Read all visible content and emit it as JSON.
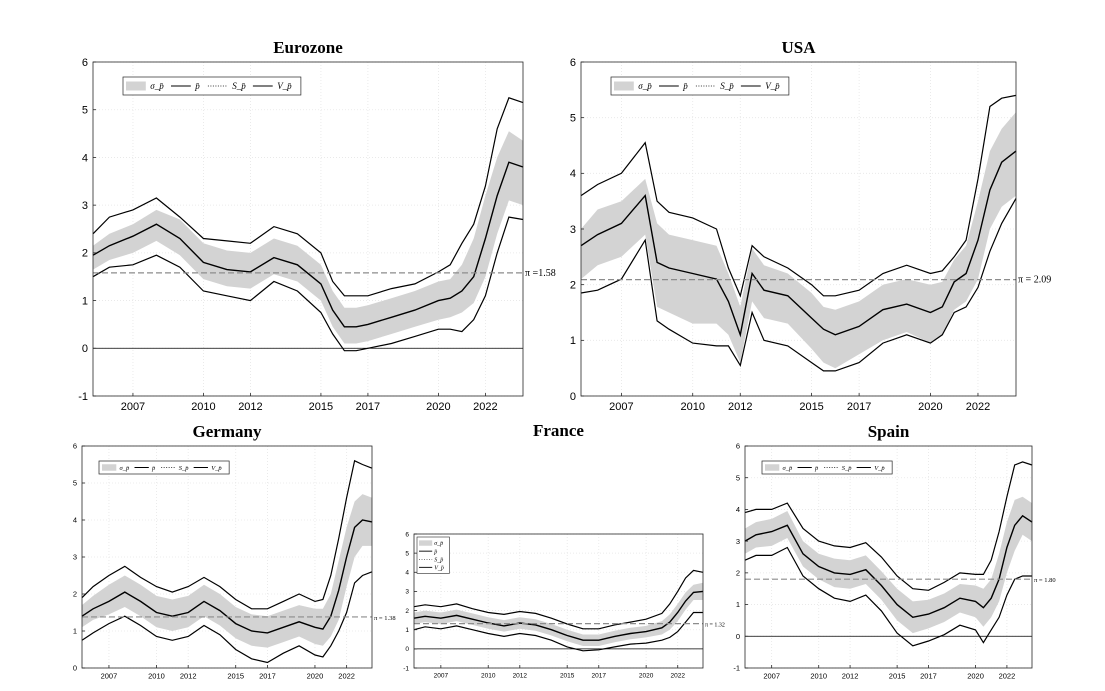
{
  "colors": {
    "band": "#d3d3d3",
    "line": "#000000",
    "target": "#8c8c8c",
    "grid": "#e6e6e6"
  },
  "legend": [
    "σ_p̄",
    "p̄",
    "S_p̄",
    "V_p̄"
  ],
  "chart_data": [
    {
      "type": "area",
      "title": "Eurozone",
      "xlim": [
        2005.3,
        2023.6
      ],
      "ylim": [
        -1,
        6
      ],
      "xticks": [
        "2007",
        "2010",
        "2012",
        "2015",
        "2017",
        "2020",
        "2022"
      ],
      "xtick_values": [
        2007,
        2010,
        2012,
        2015,
        2017,
        2020,
        2022
      ],
      "yticks": [
        "-1",
        "0",
        "1",
        "2",
        "3",
        "4",
        "5",
        "6"
      ],
      "target": 1.58,
      "target_label": "π =1.58",
      "legend_position": "top-left",
      "x": [
        2005.3,
        2006.0,
        2007.0,
        2008.0,
        2009.0,
        2010.0,
        2011.0,
        2012.0,
        2013.0,
        2014.0,
        2015.0,
        2015.5,
        2016.0,
        2016.5,
        2017.0,
        2018.0,
        2019.0,
        2020.0,
        2020.5,
        2021.0,
        2021.5,
        2022.0,
        2022.5,
        2023.0,
        2023.6
      ],
      "mean": [
        1.95,
        2.15,
        2.35,
        2.6,
        2.3,
        1.8,
        1.65,
        1.6,
        1.9,
        1.75,
        1.35,
        0.8,
        0.45,
        0.45,
        0.5,
        0.65,
        0.8,
        1.0,
        1.05,
        1.2,
        1.5,
        2.3,
        3.2,
        3.9,
        3.8
      ],
      "band_upper": [
        2.15,
        2.4,
        2.6,
        2.9,
        2.7,
        2.2,
        2.05,
        2.0,
        2.3,
        2.15,
        1.75,
        1.2,
        0.85,
        0.85,
        0.9,
        1.05,
        1.2,
        1.4,
        1.45,
        1.75,
        2.3,
        3.2,
        4.0,
        4.55,
        4.35
      ],
      "band_lower": [
        1.65,
        1.85,
        2.0,
        2.25,
        1.95,
        1.45,
        1.3,
        1.25,
        1.55,
        1.4,
        1.0,
        0.45,
        0.1,
        0.1,
        0.15,
        0.3,
        0.45,
        0.6,
        0.65,
        0.75,
        0.95,
        1.5,
        2.4,
        3.1,
        3.0
      ],
      "upper_line": [
        2.4,
        2.75,
        2.9,
        3.15,
        2.75,
        2.3,
        2.25,
        2.2,
        2.55,
        2.4,
        2.0,
        1.4,
        1.1,
        1.1,
        1.1,
        1.25,
        1.35,
        1.6,
        1.75,
        2.2,
        2.6,
        3.4,
        4.6,
        5.25,
        5.15
      ],
      "lower_line": [
        1.5,
        1.7,
        1.75,
        1.95,
        1.7,
        1.2,
        1.1,
        1.0,
        1.4,
        1.2,
        0.75,
        0.3,
        -0.05,
        -0.05,
        0.0,
        0.1,
        0.25,
        0.4,
        0.4,
        0.35,
        0.6,
        1.1,
        2.0,
        2.75,
        2.7
      ]
    },
    {
      "type": "area",
      "title": "USA",
      "xlim": [
        2005.3,
        2023.6
      ],
      "ylim": [
        0,
        6
      ],
      "xticks": [
        "2007",
        "2010",
        "2012",
        "2015",
        "2017",
        "2020",
        "2022"
      ],
      "xtick_values": [
        2007,
        2010,
        2012,
        2015,
        2017,
        2020,
        2022
      ],
      "yticks": [
        "0",
        "1",
        "2",
        "3",
        "4",
        "5",
        "6"
      ],
      "target": 2.09,
      "target_label": "π = 2.09",
      "legend_position": "top-left",
      "x": [
        2005.3,
        2006.0,
        2007.0,
        2008.0,
        2008.5,
        2009.0,
        2010.0,
        2011.0,
        2011.5,
        2012.0,
        2012.5,
        2013.0,
        2014.0,
        2015.0,
        2015.5,
        2016.0,
        2017.0,
        2018.0,
        2019.0,
        2020.0,
        2020.5,
        2021.0,
        2021.5,
        2022.0,
        2022.5,
        2023.0,
        2023.6
      ],
      "mean": [
        2.7,
        2.9,
        3.1,
        3.6,
        2.4,
        2.3,
        2.2,
        2.1,
        1.7,
        1.1,
        2.2,
        1.9,
        1.8,
        1.4,
        1.2,
        1.1,
        1.25,
        1.55,
        1.65,
        1.5,
        1.6,
        2.05,
        2.2,
        2.8,
        3.7,
        4.2,
        4.4
      ],
      "band_upper": [
        3.0,
        3.35,
        3.5,
        3.9,
        3.1,
        2.9,
        2.8,
        2.7,
        2.2,
        1.6,
        2.65,
        2.35,
        2.2,
        1.85,
        1.6,
        1.55,
        1.7,
        2.0,
        2.1,
        2.0,
        2.05,
        2.45,
        2.7,
        3.5,
        4.4,
        4.8,
        5.1
      ],
      "band_lower": [
        2.1,
        2.35,
        2.5,
        2.9,
        1.6,
        1.5,
        1.3,
        1.3,
        1.1,
        0.6,
        1.7,
        1.4,
        1.3,
        0.85,
        0.6,
        0.5,
        0.75,
        1.0,
        1.15,
        0.95,
        1.1,
        1.55,
        1.7,
        2.1,
        3.0,
        3.4,
        3.6
      ],
      "upper_line": [
        3.6,
        3.8,
        4.0,
        4.55,
        3.5,
        3.3,
        3.2,
        3.0,
        2.3,
        1.8,
        2.7,
        2.5,
        2.3,
        2.0,
        1.8,
        1.8,
        1.9,
        2.2,
        2.35,
        2.2,
        2.25,
        2.5,
        2.8,
        3.9,
        5.2,
        5.35,
        5.4
      ],
      "lower_line": [
        1.85,
        1.9,
        2.1,
        2.8,
        1.35,
        1.2,
        0.95,
        0.9,
        0.9,
        0.55,
        1.5,
        1.0,
        0.9,
        0.6,
        0.45,
        0.45,
        0.6,
        0.95,
        1.1,
        0.95,
        1.1,
        1.5,
        1.6,
        1.95,
        2.6,
        3.1,
        3.55
      ]
    },
    {
      "type": "area",
      "title": "Germany",
      "xlim": [
        2005.3,
        2023.6
      ],
      "ylim": [
        0,
        6
      ],
      "xticks": [
        "2007",
        "2010",
        "2012",
        "2015",
        "2017",
        "2020",
        "2022"
      ],
      "xtick_values": [
        2007,
        2010,
        2012,
        2015,
        2017,
        2020,
        2022
      ],
      "yticks": [
        "0",
        "1",
        "2",
        "3",
        "4",
        "5",
        "6"
      ],
      "target": 1.38,
      "target_label": "π = 1.38",
      "legend_position": "top-left",
      "x": [
        2005.3,
        2006.0,
        2007.0,
        2008.0,
        2009.0,
        2010.0,
        2011.0,
        2012.0,
        2013.0,
        2014.0,
        2015.0,
        2016.0,
        2017.0,
        2018.0,
        2019.0,
        2020.0,
        2020.5,
        2021.0,
        2021.5,
        2022.0,
        2022.5,
        2023.0,
        2023.6
      ],
      "mean": [
        1.4,
        1.6,
        1.8,
        2.05,
        1.8,
        1.5,
        1.4,
        1.5,
        1.8,
        1.55,
        1.2,
        1.0,
        0.95,
        1.1,
        1.25,
        1.1,
        1.05,
        1.4,
        2.1,
        3.0,
        3.8,
        4.0,
        3.95
      ],
      "band_upper": [
        1.7,
        1.95,
        2.25,
        2.5,
        2.25,
        1.95,
        1.85,
        1.95,
        2.25,
        2.0,
        1.65,
        1.45,
        1.4,
        1.55,
        1.7,
        1.6,
        1.6,
        2.0,
        2.9,
        3.8,
        4.5,
        4.7,
        4.6
      ],
      "band_lower": [
        1.1,
        1.3,
        1.45,
        1.65,
        1.4,
        1.1,
        1.0,
        1.1,
        1.4,
        1.15,
        0.8,
        0.6,
        0.55,
        0.7,
        0.85,
        0.65,
        0.6,
        0.85,
        1.3,
        2.2,
        3.0,
        3.3,
        3.3
      ],
      "upper_line": [
        1.9,
        2.2,
        2.5,
        2.75,
        2.45,
        2.2,
        2.05,
        2.2,
        2.45,
        2.2,
        1.85,
        1.6,
        1.6,
        1.8,
        2.0,
        1.8,
        1.85,
        2.5,
        3.5,
        4.6,
        5.6,
        5.5,
        5.4
      ],
      "lower_line": [
        0.75,
        0.95,
        1.2,
        1.4,
        1.15,
        0.85,
        0.75,
        0.85,
        1.15,
        0.9,
        0.5,
        0.25,
        0.15,
        0.4,
        0.6,
        0.35,
        0.3,
        0.6,
        1.0,
        1.5,
        2.3,
        2.5,
        2.6
      ]
    },
    {
      "type": "area",
      "title": "France",
      "xlim": [
        2005.3,
        2023.6
      ],
      "ylim": [
        -1,
        6
      ],
      "xticks": [
        "2007",
        "2010",
        "2012",
        "2015",
        "2017",
        "2020",
        "2022"
      ],
      "xtick_values": [
        2007,
        2010,
        2012,
        2015,
        2017,
        2020,
        2022
      ],
      "yticks": [
        "-1",
        "0",
        "1",
        "2",
        "3",
        "4",
        "5",
        "6"
      ],
      "target": 1.32,
      "target_label": "π = 1.32",
      "legend_position": "top-left",
      "x": [
        2005.3,
        2006.0,
        2007.0,
        2008.0,
        2009.0,
        2010.0,
        2011.0,
        2012.0,
        2013.0,
        2014.0,
        2015.0,
        2016.0,
        2017.0,
        2018.0,
        2019.0,
        2020.0,
        2021.0,
        2021.5,
        2022.0,
        2022.5,
        2023.0,
        2023.6
      ],
      "mean": [
        1.6,
        1.7,
        1.6,
        1.75,
        1.55,
        1.35,
        1.2,
        1.35,
        1.25,
        1.0,
        0.7,
        0.45,
        0.45,
        0.65,
        0.8,
        0.9,
        1.1,
        1.4,
        1.9,
        2.5,
        2.95,
        3.0
      ],
      "band_upper": [
        1.9,
        2.0,
        1.9,
        2.05,
        1.85,
        1.65,
        1.5,
        1.65,
        1.55,
        1.3,
        1.0,
        0.75,
        0.75,
        0.95,
        1.1,
        1.2,
        1.45,
        1.8,
        2.35,
        2.95,
        3.35,
        3.45
      ],
      "band_lower": [
        1.3,
        1.4,
        1.3,
        1.45,
        1.25,
        1.05,
        0.9,
        1.05,
        0.95,
        0.7,
        0.4,
        0.15,
        0.15,
        0.35,
        0.5,
        0.6,
        0.75,
        1.0,
        1.45,
        2.05,
        2.55,
        2.55
      ],
      "upper_line": [
        2.2,
        2.3,
        2.2,
        2.35,
        2.1,
        1.9,
        1.8,
        1.95,
        1.85,
        1.6,
        1.3,
        1.05,
        1.05,
        1.25,
        1.4,
        1.55,
        1.85,
        2.35,
        3.0,
        3.7,
        4.1,
        4.0
      ],
      "lower_line": [
        1.0,
        1.15,
        1.05,
        1.2,
        1.0,
        0.8,
        0.65,
        0.8,
        0.7,
        0.45,
        0.1,
        -0.1,
        -0.05,
        0.1,
        0.25,
        0.3,
        0.45,
        0.6,
        0.9,
        1.4,
        1.9,
        1.9
      ]
    },
    {
      "type": "area",
      "title": "Spain",
      "xlim": [
        2005.3,
        2023.6
      ],
      "ylim": [
        -1,
        6
      ],
      "xticks": [
        "2007",
        "2010",
        "2012",
        "2015",
        "2017",
        "2020",
        "2022"
      ],
      "xtick_values": [
        2007,
        2010,
        2012,
        2015,
        2017,
        2020,
        2022
      ],
      "yticks": [
        "-1",
        "0",
        "1",
        "2",
        "3",
        "4",
        "5",
        "6"
      ],
      "target": 1.8,
      "target_label": "π = 1.80",
      "legend_position": "top-left",
      "x": [
        2005.3,
        2006.0,
        2007.0,
        2008.0,
        2009.0,
        2010.0,
        2011.0,
        2012.0,
        2013.0,
        2014.0,
        2015.0,
        2016.0,
        2017.0,
        2018.0,
        2019.0,
        2020.0,
        2020.5,
        2021.0,
        2021.5,
        2022.0,
        2022.5,
        2023.0,
        2023.6
      ],
      "mean": [
        3.0,
        3.2,
        3.3,
        3.5,
        2.6,
        2.2,
        2.0,
        1.95,
        2.1,
        1.6,
        1.0,
        0.6,
        0.7,
        0.9,
        1.2,
        1.1,
        0.9,
        1.2,
        1.8,
        2.8,
        3.5,
        3.8,
        3.6
      ],
      "band_upper": [
        3.4,
        3.6,
        3.7,
        3.95,
        3.0,
        2.6,
        2.45,
        2.4,
        2.55,
        2.05,
        1.5,
        1.1,
        1.15,
        1.35,
        1.65,
        1.6,
        1.5,
        1.8,
        2.6,
        3.6,
        4.3,
        4.4,
        4.2
      ],
      "band_lower": [
        2.6,
        2.8,
        2.85,
        3.1,
        2.2,
        1.8,
        1.55,
        1.5,
        1.65,
        1.15,
        0.5,
        0.1,
        0.25,
        0.45,
        0.75,
        0.6,
        0.3,
        0.6,
        1.1,
        2.0,
        2.7,
        3.2,
        3.0
      ],
      "upper_line": [
        3.9,
        4.0,
        4.0,
        4.2,
        3.4,
        3.0,
        2.85,
        2.8,
        2.95,
        2.5,
        1.9,
        1.5,
        1.45,
        1.7,
        2.0,
        1.95,
        1.95,
        2.4,
        3.3,
        4.4,
        5.4,
        5.5,
        5.4
      ],
      "lower_line": [
        2.4,
        2.55,
        2.55,
        2.8,
        1.9,
        1.5,
        1.2,
        1.1,
        1.3,
        0.8,
        0.1,
        -0.3,
        -0.15,
        0.05,
        0.35,
        0.2,
        -0.2,
        0.2,
        0.6,
        1.3,
        1.8,
        1.9,
        1.9
      ]
    }
  ]
}
